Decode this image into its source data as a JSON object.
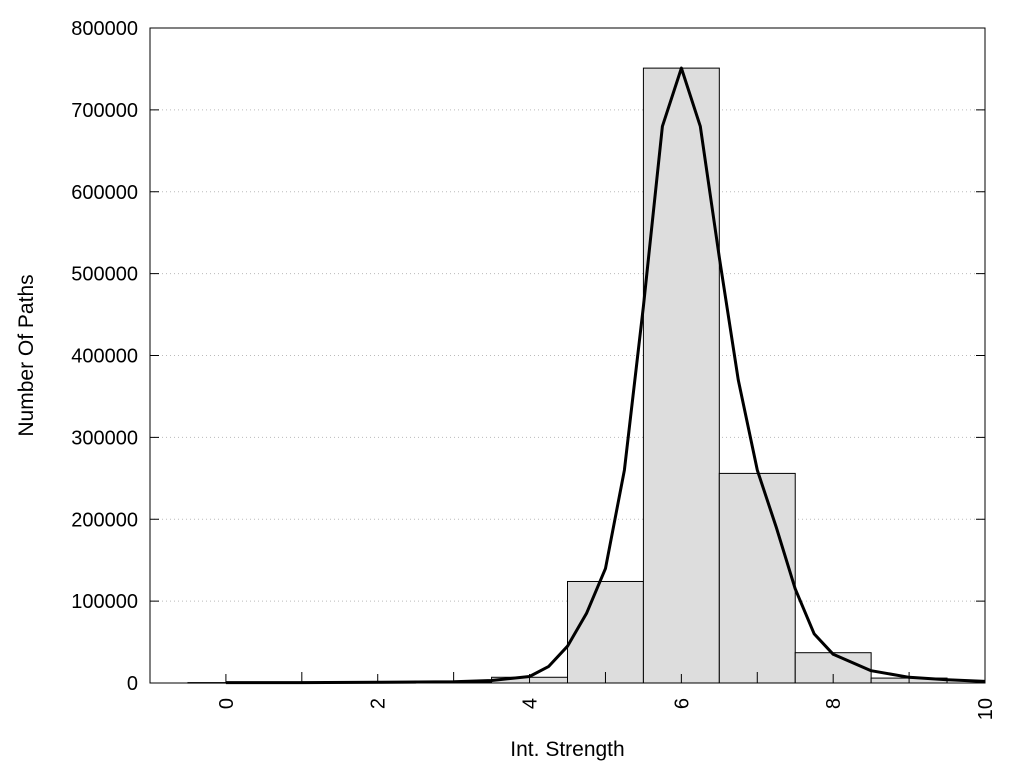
{
  "chart_data": {
    "type": "bar",
    "title": "",
    "xlabel": "Int. Strength",
    "ylabel": "Number Of Paths",
    "xlim": [
      -1,
      10
    ],
    "ylim": [
      0,
      800000
    ],
    "x_ticks": [
      0,
      2,
      4,
      6,
      8,
      10
    ],
    "y_ticks": [
      0,
      100000,
      200000,
      300000,
      400000,
      500000,
      600000,
      700000,
      800000
    ],
    "grid": "horizontal dotted",
    "legend": "none",
    "colors": {
      "bar_fill": "#dddddd",
      "bar_stroke": "#000000",
      "curve": "#000000"
    },
    "bars": {
      "x": [
        0,
        1,
        2,
        3,
        4,
        5,
        6,
        7,
        8,
        9
      ],
      "width": 1,
      "values": [
        500,
        500,
        500,
        1000,
        7000,
        124000,
        751000,
        256000,
        37000,
        6000
      ]
    },
    "curve": {
      "x": [
        0,
        1,
        2,
        3,
        3.5,
        4,
        4.25,
        4.5,
        4.75,
        5,
        5.25,
        5.5,
        5.75,
        6,
        6.25,
        6.5,
        6.75,
        7,
        7.25,
        7.5,
        7.75,
        8,
        8.5,
        9,
        9.5,
        10
      ],
      "y": [
        500,
        500,
        800,
        1500,
        3000,
        8000,
        20000,
        45000,
        85000,
        140000,
        260000,
        460000,
        680000,
        751000,
        680000,
        520000,
        370000,
        260000,
        190000,
        115000,
        60000,
        35000,
        15000,
        7000,
        4000,
        2000
      ]
    }
  }
}
